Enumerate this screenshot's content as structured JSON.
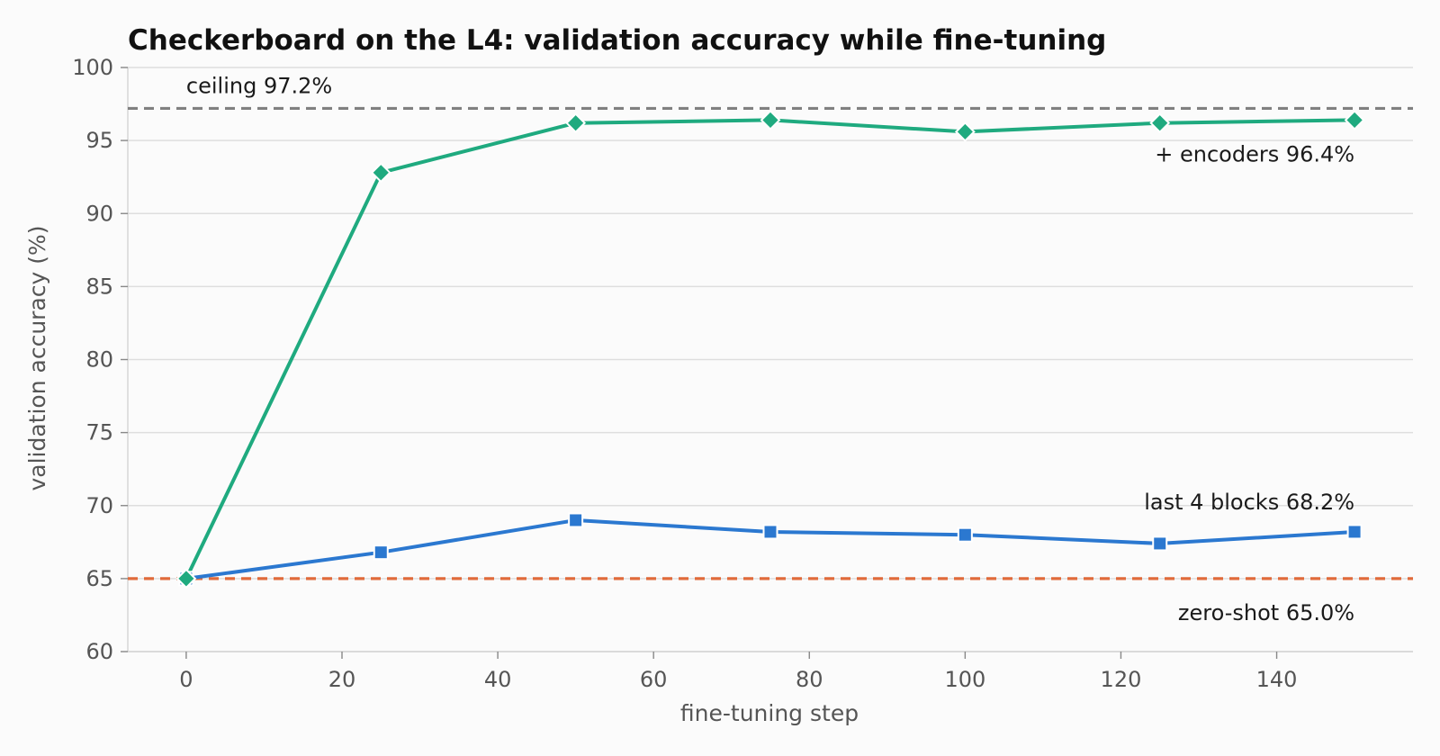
{
  "chart_data": {
    "type": "line",
    "title": "Checkerboard on the L4: validation accuracy while fine-tuning",
    "xlabel": "fine-tuning step",
    "ylabel": "validation accuracy (%)",
    "xlim": [
      -7.5,
      157.5
    ],
    "ylim": [
      60,
      100
    ],
    "xticks": [
      "0",
      "20",
      "40",
      "60",
      "80",
      "100",
      "120",
      "140"
    ],
    "yticks": [
      "60",
      "65",
      "70",
      "75",
      "80",
      "85",
      "90",
      "95",
      "100"
    ],
    "x": [
      0,
      25,
      50,
      75,
      100,
      125,
      150
    ],
    "grid": "horizontal",
    "series": [
      {
        "label": "+ encoders 96.4%",
        "color": "#1faa7f",
        "marker": "diamond",
        "values": [
          65.0,
          92.8,
          96.2,
          96.4,
          95.6,
          96.2,
          96.4
        ]
      },
      {
        "label": "last 4 blocks 68.2%",
        "color": "#2b78d0",
        "marker": "square",
        "values": [
          65.0,
          66.8,
          69.0,
          68.2,
          68.0,
          67.4,
          68.2
        ]
      }
    ],
    "reference_lines": [
      {
        "label": "ceiling 97.2%",
        "value": 97.2,
        "color": "#808080"
      },
      {
        "label": "zero-shot 65.0%",
        "value": 65.0,
        "color": "#e06a3a"
      }
    ]
  }
}
